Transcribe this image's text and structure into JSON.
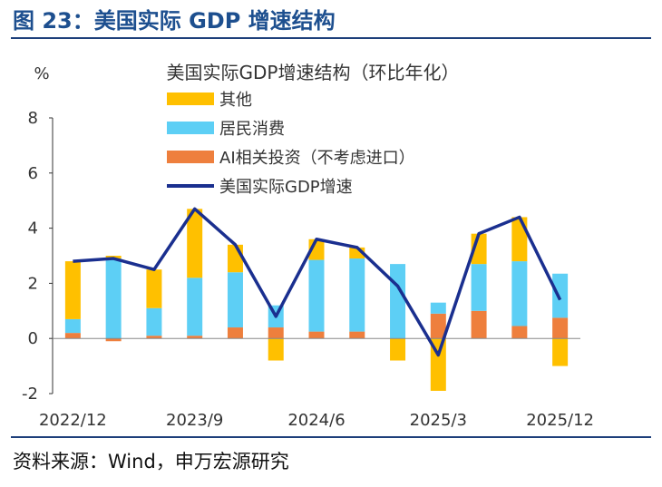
{
  "figure": {
    "title": "图 23：美国实际 GDP 增速结构",
    "source": "资料来源：Wind，申万宏源研究"
  },
  "colors": {
    "other": "#ffc000",
    "consumption": "#5dcff5",
    "ai": "#ee7f3d",
    "gdp": "#1a2f8f",
    "brand": "#1d4f8f"
  },
  "chart_data": {
    "type": "bar",
    "stacked": true,
    "title": "美国实际GDP增速结构（环比年化）",
    "ylabel": "%",
    "ylim": [
      -2,
      8
    ],
    "yticks": [
      "8",
      "6",
      "4",
      "2",
      "0",
      "-2"
    ],
    "categories": [
      "2022/12",
      "2023/3",
      "2023/6",
      "2023/9",
      "2023/12",
      "2024/3",
      "2024/6",
      "2024/9",
      "2024/12",
      "2025/3",
      "2025/6",
      "2025/9",
      "2025/12"
    ],
    "xtick_labels": [
      "2022/12",
      "2023/9",
      "2024/6",
      "2025/3",
      "2025/12"
    ],
    "series": [
      {
        "key": "ai",
        "name": "AI相关投资（不考虑进口）",
        "kind": "bar",
        "values": [
          0.2,
          -0.1,
          0.1,
          0.1,
          0.4,
          0.4,
          0.25,
          0.25,
          0.0,
          0.9,
          1.0,
          0.45,
          0.75
        ]
      },
      {
        "key": "consumption",
        "name": "居民消费",
        "kind": "bar",
        "values": [
          0.5,
          2.9,
          1.0,
          2.1,
          2.0,
          0.8,
          2.6,
          2.65,
          2.7,
          0.4,
          1.7,
          2.35,
          1.6
        ]
      },
      {
        "key": "other",
        "name": "其他",
        "kind": "bar",
        "values": [
          2.1,
          0.1,
          1.4,
          2.5,
          1.0,
          -0.8,
          0.75,
          0.4,
          -0.8,
          -1.9,
          1.1,
          1.6,
          -1.0
        ]
      },
      {
        "key": "gdp",
        "name": "美国实际GDP增速",
        "kind": "line",
        "values": [
          2.8,
          2.9,
          2.5,
          4.7,
          3.4,
          0.8,
          3.6,
          3.3,
          1.9,
          -0.6,
          3.8,
          4.4,
          1.4
        ]
      }
    ],
    "legend_order": [
      "other",
      "consumption",
      "ai",
      "gdp"
    ],
    "legend_position": "top-center"
  }
}
